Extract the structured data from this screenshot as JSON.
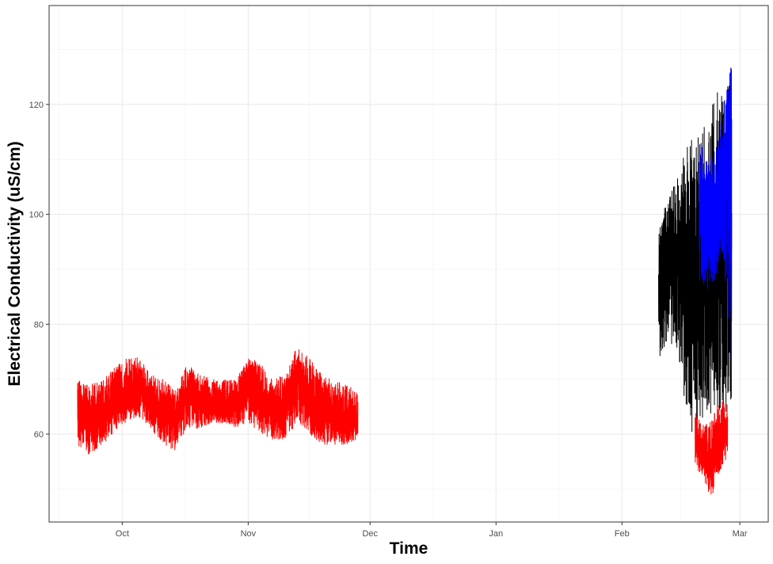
{
  "chart_data": {
    "type": "line",
    "title": "",
    "xlabel": "Time",
    "ylabel": "Electrical Conductivity (uS/cm)",
    "x_ticks": [
      {
        "label": "Oct",
        "date": "2023-10-01"
      },
      {
        "label": "Nov",
        "date": "2023-11-01"
      },
      {
        "label": "Dec",
        "date": "2023-12-01"
      },
      {
        "label": "Jan",
        "date": "2024-01-01"
      },
      {
        "label": "Feb",
        "date": "2024-02-01"
      },
      {
        "label": "Mar",
        "date": "2024-03-01"
      }
    ],
    "xlim": [
      "2023-09-13",
      "2024-03-08"
    ],
    "y_ticks": [
      60,
      80,
      100,
      120
    ],
    "ylim": [
      44,
      138
    ],
    "grid": true,
    "legend": "none",
    "series": [
      {
        "color": "#ff0000",
        "x": [
          "2023-09-20",
          "2023-09-23",
          "2023-09-26",
          "2023-09-29",
          "2023-10-02",
          "2023-10-05",
          "2023-10-08",
          "2023-10-11",
          "2023-10-14",
          "2023-10-17",
          "2023-10-20",
          "2023-10-23",
          "2023-10-26",
          "2023-10-29",
          "2023-11-01",
          "2023-11-04",
          "2023-11-07",
          "2023-11-10",
          "2023-11-13",
          "2023-11-16",
          "2023-11-19",
          "2023-11-22",
          "2023-11-25",
          "2023-11-28"
        ],
        "y": [
          64,
          62,
          63,
          66,
          68,
          69,
          66,
          64,
          63,
          67,
          66,
          65,
          65,
          66,
          70,
          66,
          64,
          64,
          71,
          67,
          64,
          63,
          62,
          63
        ],
        "min": [
          58,
          56,
          58,
          60,
          62,
          63,
          61,
          58,
          57,
          61,
          61,
          62,
          62,
          61,
          62,
          60,
          59,
          59,
          62,
          60,
          58,
          58,
          58,
          59
        ],
        "max": [
          70,
          69,
          70,
          72,
          74,
          74,
          71,
          70,
          68,
          73,
          71,
          70,
          70,
          70,
          74,
          73,
          70,
          71,
          76,
          74,
          71,
          70,
          69,
          68
        ]
      },
      {
        "color": "#000000",
        "x": [
          "2024-02-10",
          "2024-02-12",
          "2024-02-14",
          "2024-02-16",
          "2024-02-18",
          "2024-02-20",
          "2024-02-22",
          "2024-02-24",
          "2024-02-26",
          "2024-02-28"
        ],
        "y": [
          86,
          93,
          90,
          95,
          82,
          90,
          88,
          85,
          98,
          95
        ],
        "min": [
          73,
          77,
          76,
          68,
          60,
          62,
          63,
          64,
          63,
          66
        ],
        "max": [
          99,
          102,
          106,
          111,
          118,
          115,
          117,
          122,
          124,
          132
        ]
      },
      {
        "color": "#0000ff",
        "x": [
          "2024-02-20",
          "2024-02-22",
          "2024-02-24",
          "2024-02-26",
          "2024-02-28"
        ],
        "y": [
          104,
          97,
          95,
          108,
          116
        ],
        "min": [
          88,
          86,
          88,
          92,
          70
        ],
        "max": [
          114,
          110,
          112,
          120,
          129
        ]
      },
      {
        "color": "#ff0000",
        "x": [
          "2024-02-19",
          "2024-02-21",
          "2024-02-23",
          "2024-02-25",
          "2024-02-27"
        ],
        "y": [
          58,
          57,
          55,
          58,
          60
        ],
        "min": [
          54,
          52,
          48,
          53,
          56
        ],
        "max": [
          64,
          62,
          63,
          66,
          66
        ]
      }
    ]
  }
}
